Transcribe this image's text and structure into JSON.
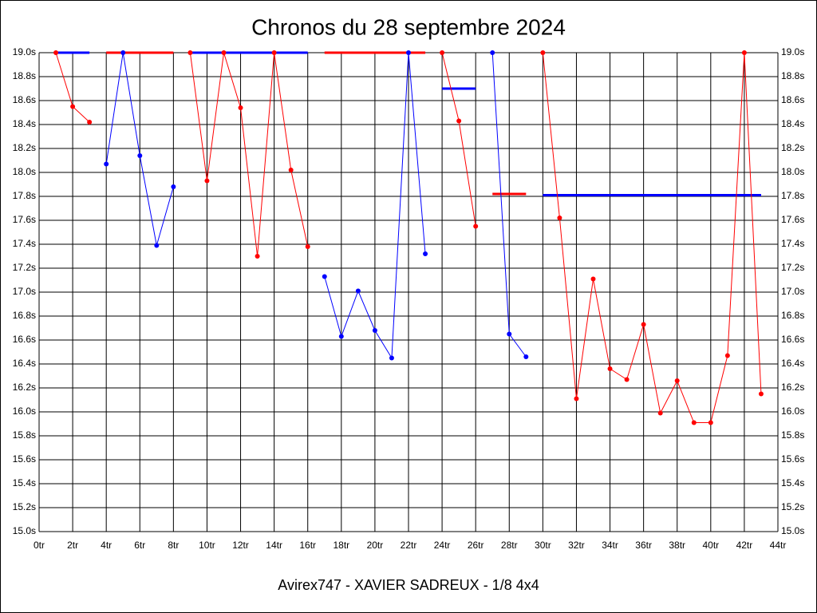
{
  "chart_data": {
    "type": "line",
    "title": "Chronos du 28 septembre 2024",
    "caption": "Avirex747 - XAVIER SADREUX - 1/8 4x4",
    "xlim": [
      0,
      44
    ],
    "ylim": [
      15,
      19
    ],
    "grid": true,
    "xticks": [
      {
        "value": 0,
        "label": "0tr"
      },
      {
        "value": 2,
        "label": "2tr"
      },
      {
        "value": 4,
        "label": "4tr"
      },
      {
        "value": 6,
        "label": "6tr"
      },
      {
        "value": 8,
        "label": "8tr"
      },
      {
        "value": 10,
        "label": "10tr"
      },
      {
        "value": 12,
        "label": "12tr"
      },
      {
        "value": 14,
        "label": "14tr"
      },
      {
        "value": 16,
        "label": "16tr"
      },
      {
        "value": 18,
        "label": "18tr"
      },
      {
        "value": 20,
        "label": "20tr"
      },
      {
        "value": 22,
        "label": "22tr"
      },
      {
        "value": 24,
        "label": "24tr"
      },
      {
        "value": 26,
        "label": "26tr"
      },
      {
        "value": 28,
        "label": "28tr"
      },
      {
        "value": 30,
        "label": "30tr"
      },
      {
        "value": 32,
        "label": "32tr"
      },
      {
        "value": 34,
        "label": "34tr"
      },
      {
        "value": 36,
        "label": "36tr"
      },
      {
        "value": 38,
        "label": "38tr"
      },
      {
        "value": 40,
        "label": "40tr"
      },
      {
        "value": 42,
        "label": "42tr"
      },
      {
        "value": 44,
        "label": "44tr"
      }
    ],
    "yticks": [
      {
        "value": 15,
        "label": "15.0s"
      },
      {
        "value": 15.2,
        "label": "15.2s"
      },
      {
        "value": 15.4,
        "label": "15.4s"
      },
      {
        "value": 15.6,
        "label": "15.6s"
      },
      {
        "value": 15.8,
        "label": "15.8s"
      },
      {
        "value": 16,
        "label": "16.0s"
      },
      {
        "value": 16.2,
        "label": "16.2s"
      },
      {
        "value": 16.4,
        "label": "16.4s"
      },
      {
        "value": 16.6,
        "label": "16.6s"
      },
      {
        "value": 16.8,
        "label": "16.8s"
      },
      {
        "value": 17,
        "label": "17.0s"
      },
      {
        "value": 17.2,
        "label": "17.2s"
      },
      {
        "value": 17.4,
        "label": "17.4s"
      },
      {
        "value": 17.6,
        "label": "17.6s"
      },
      {
        "value": 17.8,
        "label": "17.8s"
      },
      {
        "value": 18,
        "label": "18.0s"
      },
      {
        "value": 18.2,
        "label": "18.2s"
      },
      {
        "value": 18.4,
        "label": "18.4s"
      },
      {
        "value": 18.6,
        "label": "18.6s"
      },
      {
        "value": 18.8,
        "label": "18.8s"
      },
      {
        "value": 19,
        "label": "19.0s"
      }
    ],
    "series": [
      {
        "color": "#0000ff",
        "markers": false,
        "x": [
          1,
          3
        ],
        "values": [
          19,
          19
        ]
      },
      {
        "color": "#ff0000",
        "markers": false,
        "x": [
          4,
          8
        ],
        "values": [
          19,
          19
        ]
      },
      {
        "color": "#0000ff",
        "markers": false,
        "x": [
          9,
          16
        ],
        "values": [
          19,
          19
        ]
      },
      {
        "color": "#ff0000",
        "markers": false,
        "x": [
          17,
          23
        ],
        "values": [
          19,
          19
        ]
      },
      {
        "color": "#0000ff",
        "markers": false,
        "x": [
          24,
          26
        ],
        "values": [
          18.7,
          18.7
        ]
      },
      {
        "color": "#ff0000",
        "markers": false,
        "x": [
          27,
          29
        ],
        "values": [
          17.82,
          17.82
        ]
      },
      {
        "color": "#0000ff",
        "markers": false,
        "x": [
          30,
          43
        ],
        "values": [
          17.81,
          17.81
        ]
      },
      {
        "color": "#ff0000",
        "markers": true,
        "x": [
          1,
          2,
          3
        ],
        "values": [
          19,
          18.55,
          18.42
        ]
      },
      {
        "color": "#0000ff",
        "markers": true,
        "x": [
          4,
          5,
          6,
          7,
          8
        ],
        "values": [
          18.07,
          19,
          18.14,
          17.39,
          17.88
        ]
      },
      {
        "color": "#ff0000",
        "markers": true,
        "x": [
          9,
          10,
          11,
          12,
          13,
          14,
          15,
          16
        ],
        "values": [
          19,
          17.93,
          19,
          18.54,
          17.3,
          19,
          18.02,
          17.38
        ]
      },
      {
        "color": "#0000ff",
        "markers": true,
        "x": [
          17,
          18,
          19,
          20,
          21,
          22,
          23
        ],
        "values": [
          17.13,
          16.63,
          17.01,
          16.68,
          16.45,
          19,
          17.32
        ]
      },
      {
        "color": "#ff0000",
        "markers": true,
        "x": [
          24,
          25,
          26
        ],
        "values": [
          19,
          18.43,
          17.55
        ]
      },
      {
        "color": "#0000ff",
        "markers": true,
        "x": [
          27,
          28,
          29
        ],
        "values": [
          19,
          16.65,
          16.46
        ]
      },
      {
        "color": "#ff0000",
        "markers": true,
        "x": [
          30,
          31,
          32,
          33,
          34,
          35,
          36,
          37,
          38,
          39,
          40,
          41,
          42,
          43
        ],
        "values": [
          19,
          17.62,
          16.11,
          17.11,
          16.36,
          16.27,
          16.73,
          15.99,
          16.26,
          15.91,
          15.91,
          16.47,
          19,
          16.15
        ]
      }
    ]
  }
}
